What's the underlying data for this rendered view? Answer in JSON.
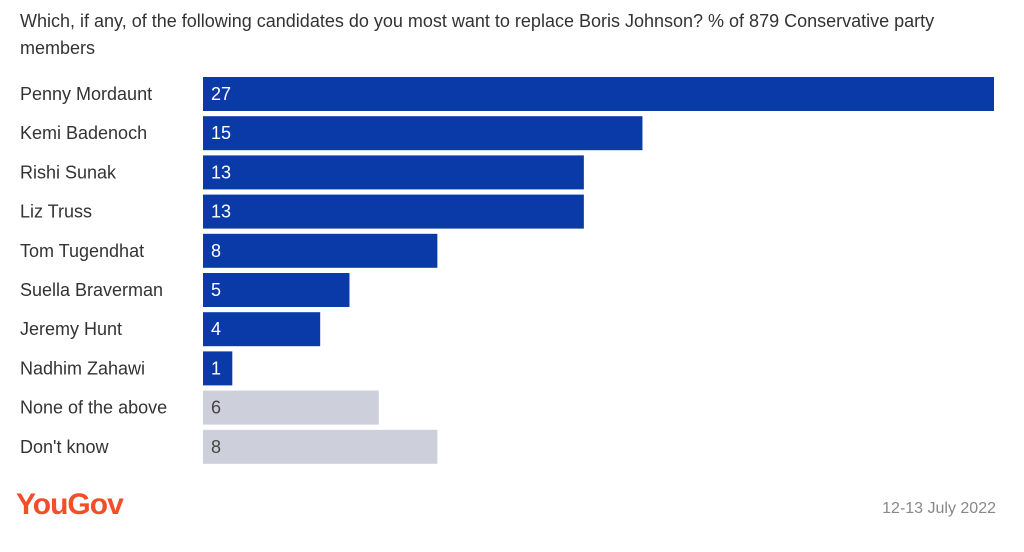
{
  "chart_data": {
    "type": "bar",
    "orientation": "horizontal",
    "title": "Which, if any, of the following candidates do you most want to replace Boris Johnson? % of 879 Conservative party members",
    "categories": [
      "Penny Mordaunt",
      "Kemi Badenoch",
      "Rishi Sunak",
      "Liz Truss",
      "Tom Tugendhat",
      "Suella Braverman",
      "Jeremy Hunt",
      "Nadhim Zahawi",
      "None of the above",
      "Don't know"
    ],
    "values": [
      27,
      15,
      13,
      13,
      8,
      5,
      4,
      1,
      6,
      8
    ],
    "bar_colors": [
      "#0a3aa8",
      "#0a3aa8",
      "#0a3aa8",
      "#0a3aa8",
      "#0a3aa8",
      "#0a3aa8",
      "#0a3aa8",
      "#0a3aa8",
      "#cdd0da",
      "#cdd0da"
    ],
    "label_colors": [
      "#ffffff",
      "#ffffff",
      "#ffffff",
      "#ffffff",
      "#ffffff",
      "#ffffff",
      "#ffffff",
      "#ffffff",
      "#444444",
      "#444444"
    ],
    "xlim": [
      0,
      27
    ],
    "grid": false,
    "legend": "none"
  },
  "footer": {
    "logo": "YouGov",
    "date": "12-13 July 2022"
  }
}
